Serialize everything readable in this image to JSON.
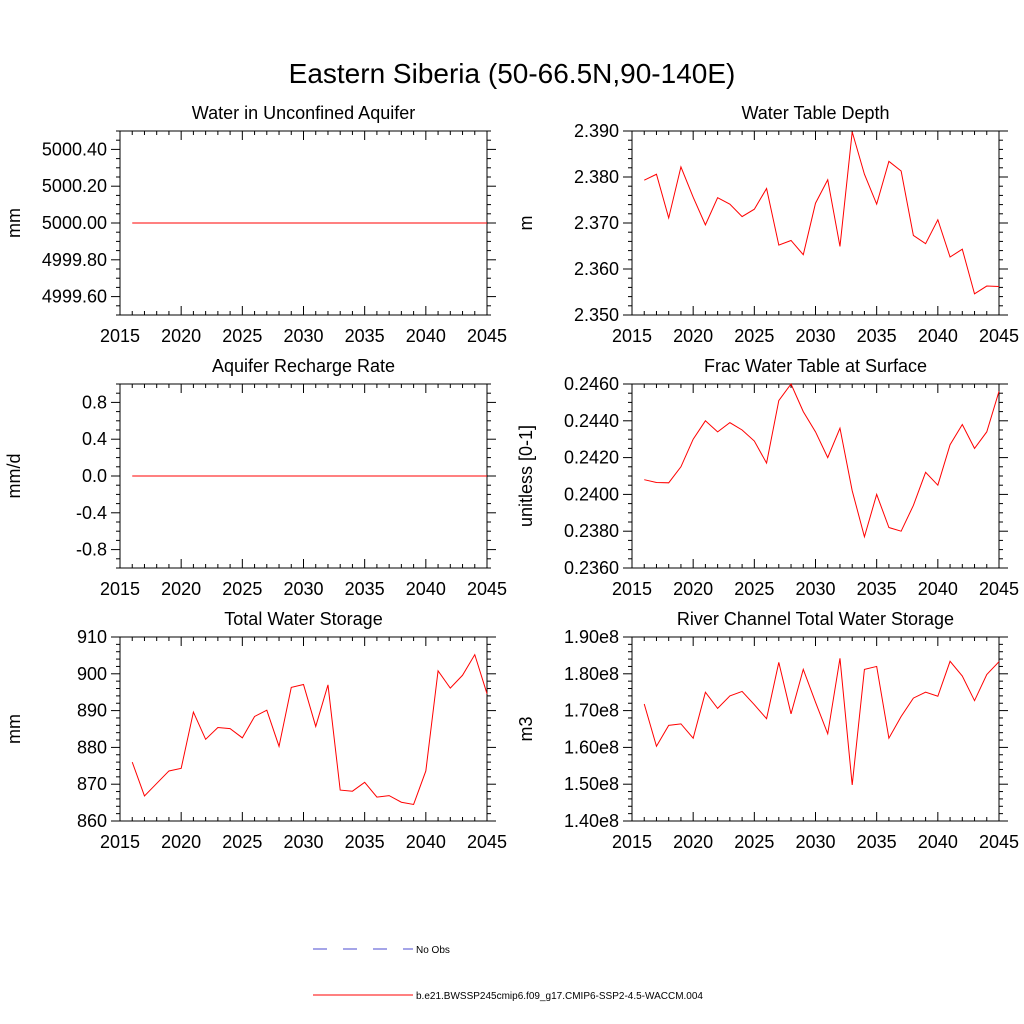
{
  "figure": {
    "title": "Eastern Siberia (50-66.5N,90-140E)"
  },
  "colors": {
    "series": "#ff0000",
    "obs": "#4b4bd2",
    "axis": "#000000"
  },
  "legend": {
    "items": [
      {
        "label": "No Obs",
        "style": "dashed",
        "color": "#4b4bd2"
      },
      {
        "label": "b.e21.BWSSP245cmip6.f09_g17.CMIP6-SSP2-4.5-WACCM.004",
        "style": "solid",
        "color": "#ff0000"
      }
    ]
  },
  "chart_data": [
    {
      "type": "line",
      "title": "Water in Unconfined Aquifer",
      "xlabel": "",
      "ylabel": "mm",
      "xlim": [
        2015,
        2045
      ],
      "ylim": [
        4999.5,
        5000.5
      ],
      "xticks": [
        "2015",
        "2020",
        "2025",
        "2030",
        "2035",
        "2040",
        "2045"
      ],
      "yticks": [
        {
          "v": 4999.6,
          "label": "4999.60"
        },
        {
          "v": 4999.8,
          "label": "4999.80"
        },
        {
          "v": 5000.0,
          "label": "5000.00"
        },
        {
          "v": 5000.2,
          "label": "5000.20"
        },
        {
          "v": 5000.4,
          "label": "5000.40"
        }
      ],
      "yminor": [
        4999.5,
        4999.55,
        4999.65,
        4999.7,
        4999.75,
        4999.85,
        4999.9,
        4999.95,
        5000.05,
        5000.1,
        5000.15,
        5000.25,
        5000.3,
        5000.35,
        5000.45,
        5000.5
      ],
      "x": [
        2016,
        2017,
        2018,
        2019,
        2020,
        2021,
        2022,
        2023,
        2024,
        2025,
        2026,
        2027,
        2028,
        2029,
        2030,
        2031,
        2032,
        2033,
        2034,
        2035,
        2036,
        2037,
        2038,
        2039,
        2040,
        2041,
        2042,
        2043,
        2044,
        2045
      ],
      "series": [
        {
          "name": "b.e21.BWSSP245cmip6.f09_g17.CMIP6-SSP2-4.5-WACCM.004",
          "values": [
            5000,
            5000,
            5000,
            5000,
            5000,
            5000,
            5000,
            5000,
            5000,
            5000,
            5000,
            5000,
            5000,
            5000,
            5000,
            5000,
            5000,
            5000,
            5000,
            5000,
            5000,
            5000,
            5000,
            5000,
            5000,
            5000,
            5000,
            5000,
            5000,
            5000
          ]
        }
      ]
    },
    {
      "type": "line",
      "title": "Water Table Depth",
      "xlabel": "",
      "ylabel": "m",
      "xlim": [
        2015,
        2045
      ],
      "ylim": [
        2.35,
        2.39
      ],
      "xticks": [
        "2015",
        "2020",
        "2025",
        "2030",
        "2035",
        "2040",
        "2045"
      ],
      "yticks": [
        {
          "v": 2.35,
          "label": "2.350"
        },
        {
          "v": 2.36,
          "label": "2.360"
        },
        {
          "v": 2.37,
          "label": "2.370"
        },
        {
          "v": 2.38,
          "label": "2.380"
        },
        {
          "v": 2.39,
          "label": "2.390"
        }
      ],
      "yminor": [
        2.352,
        2.354,
        2.356,
        2.358,
        2.362,
        2.364,
        2.366,
        2.368,
        2.372,
        2.374,
        2.376,
        2.378,
        2.382,
        2.384,
        2.386,
        2.388
      ],
      "x": [
        2016,
        2017,
        2018,
        2019,
        2020,
        2021,
        2022,
        2023,
        2024,
        2025,
        2026,
        2027,
        2028,
        2029,
        2030,
        2031,
        2032,
        2033,
        2034,
        2035,
        2036,
        2037,
        2038,
        2039,
        2040,
        2041,
        2042,
        2043,
        2044,
        2045
      ],
      "series": [
        {
          "name": "b.e21.BWSSP245cmip6.f09_g17.CMIP6-SSP2-4.5-WACCM.004",
          "values": [
            2.3793,
            2.3806,
            2.3711,
            2.3822,
            2.3756,
            2.3696,
            2.3755,
            2.3741,
            2.3714,
            2.373,
            2.3775,
            2.3652,
            2.3662,
            2.3631,
            2.3743,
            2.3794,
            2.3649,
            2.3898,
            2.3806,
            2.3741,
            2.3834,
            2.3813,
            2.3673,
            2.3655,
            2.3707,
            2.3626,
            2.3643,
            2.3546,
            2.3563,
            2.3562
          ]
        }
      ]
    },
    {
      "type": "line",
      "title": "Aquifer Recharge Rate",
      "xlabel": "",
      "ylabel": "mm/d",
      "xlim": [
        2015,
        2045
      ],
      "ylim": [
        -1.0,
        1.0
      ],
      "xticks": [
        "2015",
        "2020",
        "2025",
        "2030",
        "2035",
        "2040",
        "2045"
      ],
      "yticks": [
        {
          "v": -0.8,
          "label": "-0.8"
        },
        {
          "v": -0.4,
          "label": "-0.4"
        },
        {
          "v": 0.0,
          "label": "0.0"
        },
        {
          "v": 0.4,
          "label": "0.4"
        },
        {
          "v": 0.8,
          "label": "0.8"
        }
      ],
      "yminor": [
        -1.0,
        -0.9,
        -0.7,
        -0.6,
        -0.5,
        -0.3,
        -0.2,
        -0.1,
        0.1,
        0.2,
        0.3,
        0.5,
        0.6,
        0.7,
        0.9,
        1.0
      ],
      "x": [
        2016,
        2017,
        2018,
        2019,
        2020,
        2021,
        2022,
        2023,
        2024,
        2025,
        2026,
        2027,
        2028,
        2029,
        2030,
        2031,
        2032,
        2033,
        2034,
        2035,
        2036,
        2037,
        2038,
        2039,
        2040,
        2041,
        2042,
        2043,
        2044,
        2045
      ],
      "series": [
        {
          "name": "b.e21.BWSSP245cmip6.f09_g17.CMIP6-SSP2-4.5-WACCM.004",
          "values": [
            0,
            0,
            0,
            0,
            0,
            0,
            0,
            0,
            0,
            0,
            0,
            0,
            0,
            0,
            0,
            0,
            0,
            0,
            0,
            0,
            0,
            0,
            0,
            0,
            0,
            0,
            0,
            0,
            0,
            0
          ]
        }
      ]
    },
    {
      "type": "line",
      "title": "Frac Water Table at Surface",
      "xlabel": "",
      "ylabel": "unitless [0-1]",
      "xlim": [
        2015,
        2045
      ],
      "ylim": [
        0.236,
        0.246
      ],
      "xticks": [
        "2015",
        "2020",
        "2025",
        "2030",
        "2035",
        "2040",
        "2045"
      ],
      "yticks": [
        {
          "v": 0.236,
          "label": "0.2360"
        },
        {
          "v": 0.238,
          "label": "0.2380"
        },
        {
          "v": 0.24,
          "label": "0.2400"
        },
        {
          "v": 0.242,
          "label": "0.2420"
        },
        {
          "v": 0.244,
          "label": "0.2440"
        },
        {
          "v": 0.246,
          "label": "0.2460"
        }
      ],
      "yminor": [
        0.2365,
        0.237,
        0.2375,
        0.2385,
        0.239,
        0.2395,
        0.2405,
        0.241,
        0.2415,
        0.2425,
        0.243,
        0.2435,
        0.2445,
        0.245,
        0.2455
      ],
      "x": [
        2016,
        2017,
        2018,
        2019,
        2020,
        2021,
        2022,
        2023,
        2024,
        2025,
        2026,
        2027,
        2028,
        2029,
        2030,
        2031,
        2032,
        2033,
        2034,
        2035,
        2036,
        2037,
        2038,
        2039,
        2040,
        2041,
        2042,
        2043,
        2044,
        2045
      ],
      "series": [
        {
          "name": "b.e21.BWSSP245cmip6.f09_g17.CMIP6-SSP2-4.5-WACCM.004",
          "values": [
            0.2408,
            0.24065,
            0.24063,
            0.2415,
            0.243,
            0.244,
            0.2434,
            0.2439,
            0.2435,
            0.2429,
            0.2417,
            0.2451,
            0.246,
            0.2445,
            0.2434,
            0.242,
            0.2436,
            0.2402,
            0.2377,
            0.24,
            0.2382,
            0.238,
            0.2394,
            0.2412,
            0.2405,
            0.2427,
            0.2438,
            0.2425,
            0.2434,
            0.2456
          ]
        }
      ]
    },
    {
      "type": "line",
      "title": "Total Water Storage",
      "xlabel": "",
      "ylabel": "mm",
      "xlim": [
        2015,
        2045
      ],
      "ylim": [
        860,
        910
      ],
      "xticks": [
        "2015",
        "2020",
        "2025",
        "2030",
        "2035",
        "2040",
        "2045"
      ],
      "yticks": [
        {
          "v": 860,
          "label": "860"
        },
        {
          "v": 870,
          "label": "870"
        },
        {
          "v": 880,
          "label": "880"
        },
        {
          "v": 890,
          "label": "890"
        },
        {
          "v": 900,
          "label": "900"
        },
        {
          "v": 910,
          "label": "910"
        }
      ],
      "yminor": [
        862,
        864,
        866,
        868,
        872,
        874,
        876,
        878,
        882,
        884,
        886,
        888,
        892,
        894,
        896,
        898,
        902,
        904,
        906,
        908
      ],
      "x": [
        2016,
        2017,
        2018,
        2019,
        2020,
        2021,
        2022,
        2023,
        2024,
        2025,
        2026,
        2027,
        2028,
        2029,
        2030,
        2031,
        2032,
        2033,
        2034,
        2035,
        2036,
        2037,
        2038,
        2039,
        2040,
        2041,
        2042,
        2043,
        2044,
        2045
      ],
      "series": [
        {
          "name": "b.e21.BWSSP245cmip6.f09_g17.CMIP6-SSP2-4.5-WACCM.004",
          "values": [
            876.0,
            866.8,
            870.2,
            873.6,
            874.3,
            889.6,
            882.2,
            885.4,
            885.1,
            882.6,
            888.4,
            890.1,
            880.3,
            896.3,
            897.1,
            885.7,
            897.0,
            868.4,
            868.1,
            870.5,
            866.5,
            866.9,
            865.1,
            864.5,
            873.6,
            900.8,
            896.1,
            899.6,
            905.2,
            894.6
          ]
        }
      ]
    },
    {
      "type": "line",
      "title": "River Channel Total Water Storage",
      "xlabel": "",
      "ylabel": "m3",
      "xlim": [
        2015,
        2045
      ],
      "ylim": [
        140000000.0,
        190000000.0
      ],
      "xticks": [
        "2015",
        "2020",
        "2025",
        "2030",
        "2035",
        "2040",
        "2045"
      ],
      "yticks": [
        {
          "v": 140000000.0,
          "label": "1.40e8"
        },
        {
          "v": 150000000.0,
          "label": "1.50e8"
        },
        {
          "v": 160000000.0,
          "label": "1.60e8"
        },
        {
          "v": 170000000.0,
          "label": "1.70e8"
        },
        {
          "v": 180000000.0,
          "label": "1.80e8"
        },
        {
          "v": 190000000.0,
          "label": "1.90e8"
        }
      ],
      "yminor": [
        142000000.0,
        144000000.0,
        146000000.0,
        148000000.0,
        152000000.0,
        154000000.0,
        156000000.0,
        158000000.0,
        162000000.0,
        164000000.0,
        166000000.0,
        168000000.0,
        172000000.0,
        174000000.0,
        176000000.0,
        178000000.0,
        182000000.0,
        184000000.0,
        186000000.0,
        188000000.0
      ],
      "x": [
        2016,
        2017,
        2018,
        2019,
        2020,
        2021,
        2022,
        2023,
        2024,
        2025,
        2026,
        2027,
        2028,
        2029,
        2030,
        2031,
        2032,
        2033,
        2034,
        2035,
        2036,
        2037,
        2038,
        2039,
        2040,
        2041,
        2042,
        2043,
        2044,
        2045
      ],
      "series": [
        {
          "name": "b.e21.BWSSP245cmip6.f09_g17.CMIP6-SSP2-4.5-WACCM.004",
          "values": [
            171800000.0,
            160300000.0,
            166000000.0,
            166400000.0,
            162500000.0,
            175000000.0,
            170600000.0,
            174000000.0,
            175200000.0,
            171600000.0,
            167800000.0,
            183100000.0,
            169100000.0,
            181200000.0,
            172300000.0,
            163700000.0,
            184200000.0,
            149800000.0,
            181200000.0,
            182000000.0,
            162500000.0,
            168400000.0,
            173400000.0,
            175000000.0,
            173900000.0,
            183400000.0,
            179400000.0,
            172700000.0,
            179800000.0,
            183300000.0
          ]
        }
      ]
    }
  ]
}
